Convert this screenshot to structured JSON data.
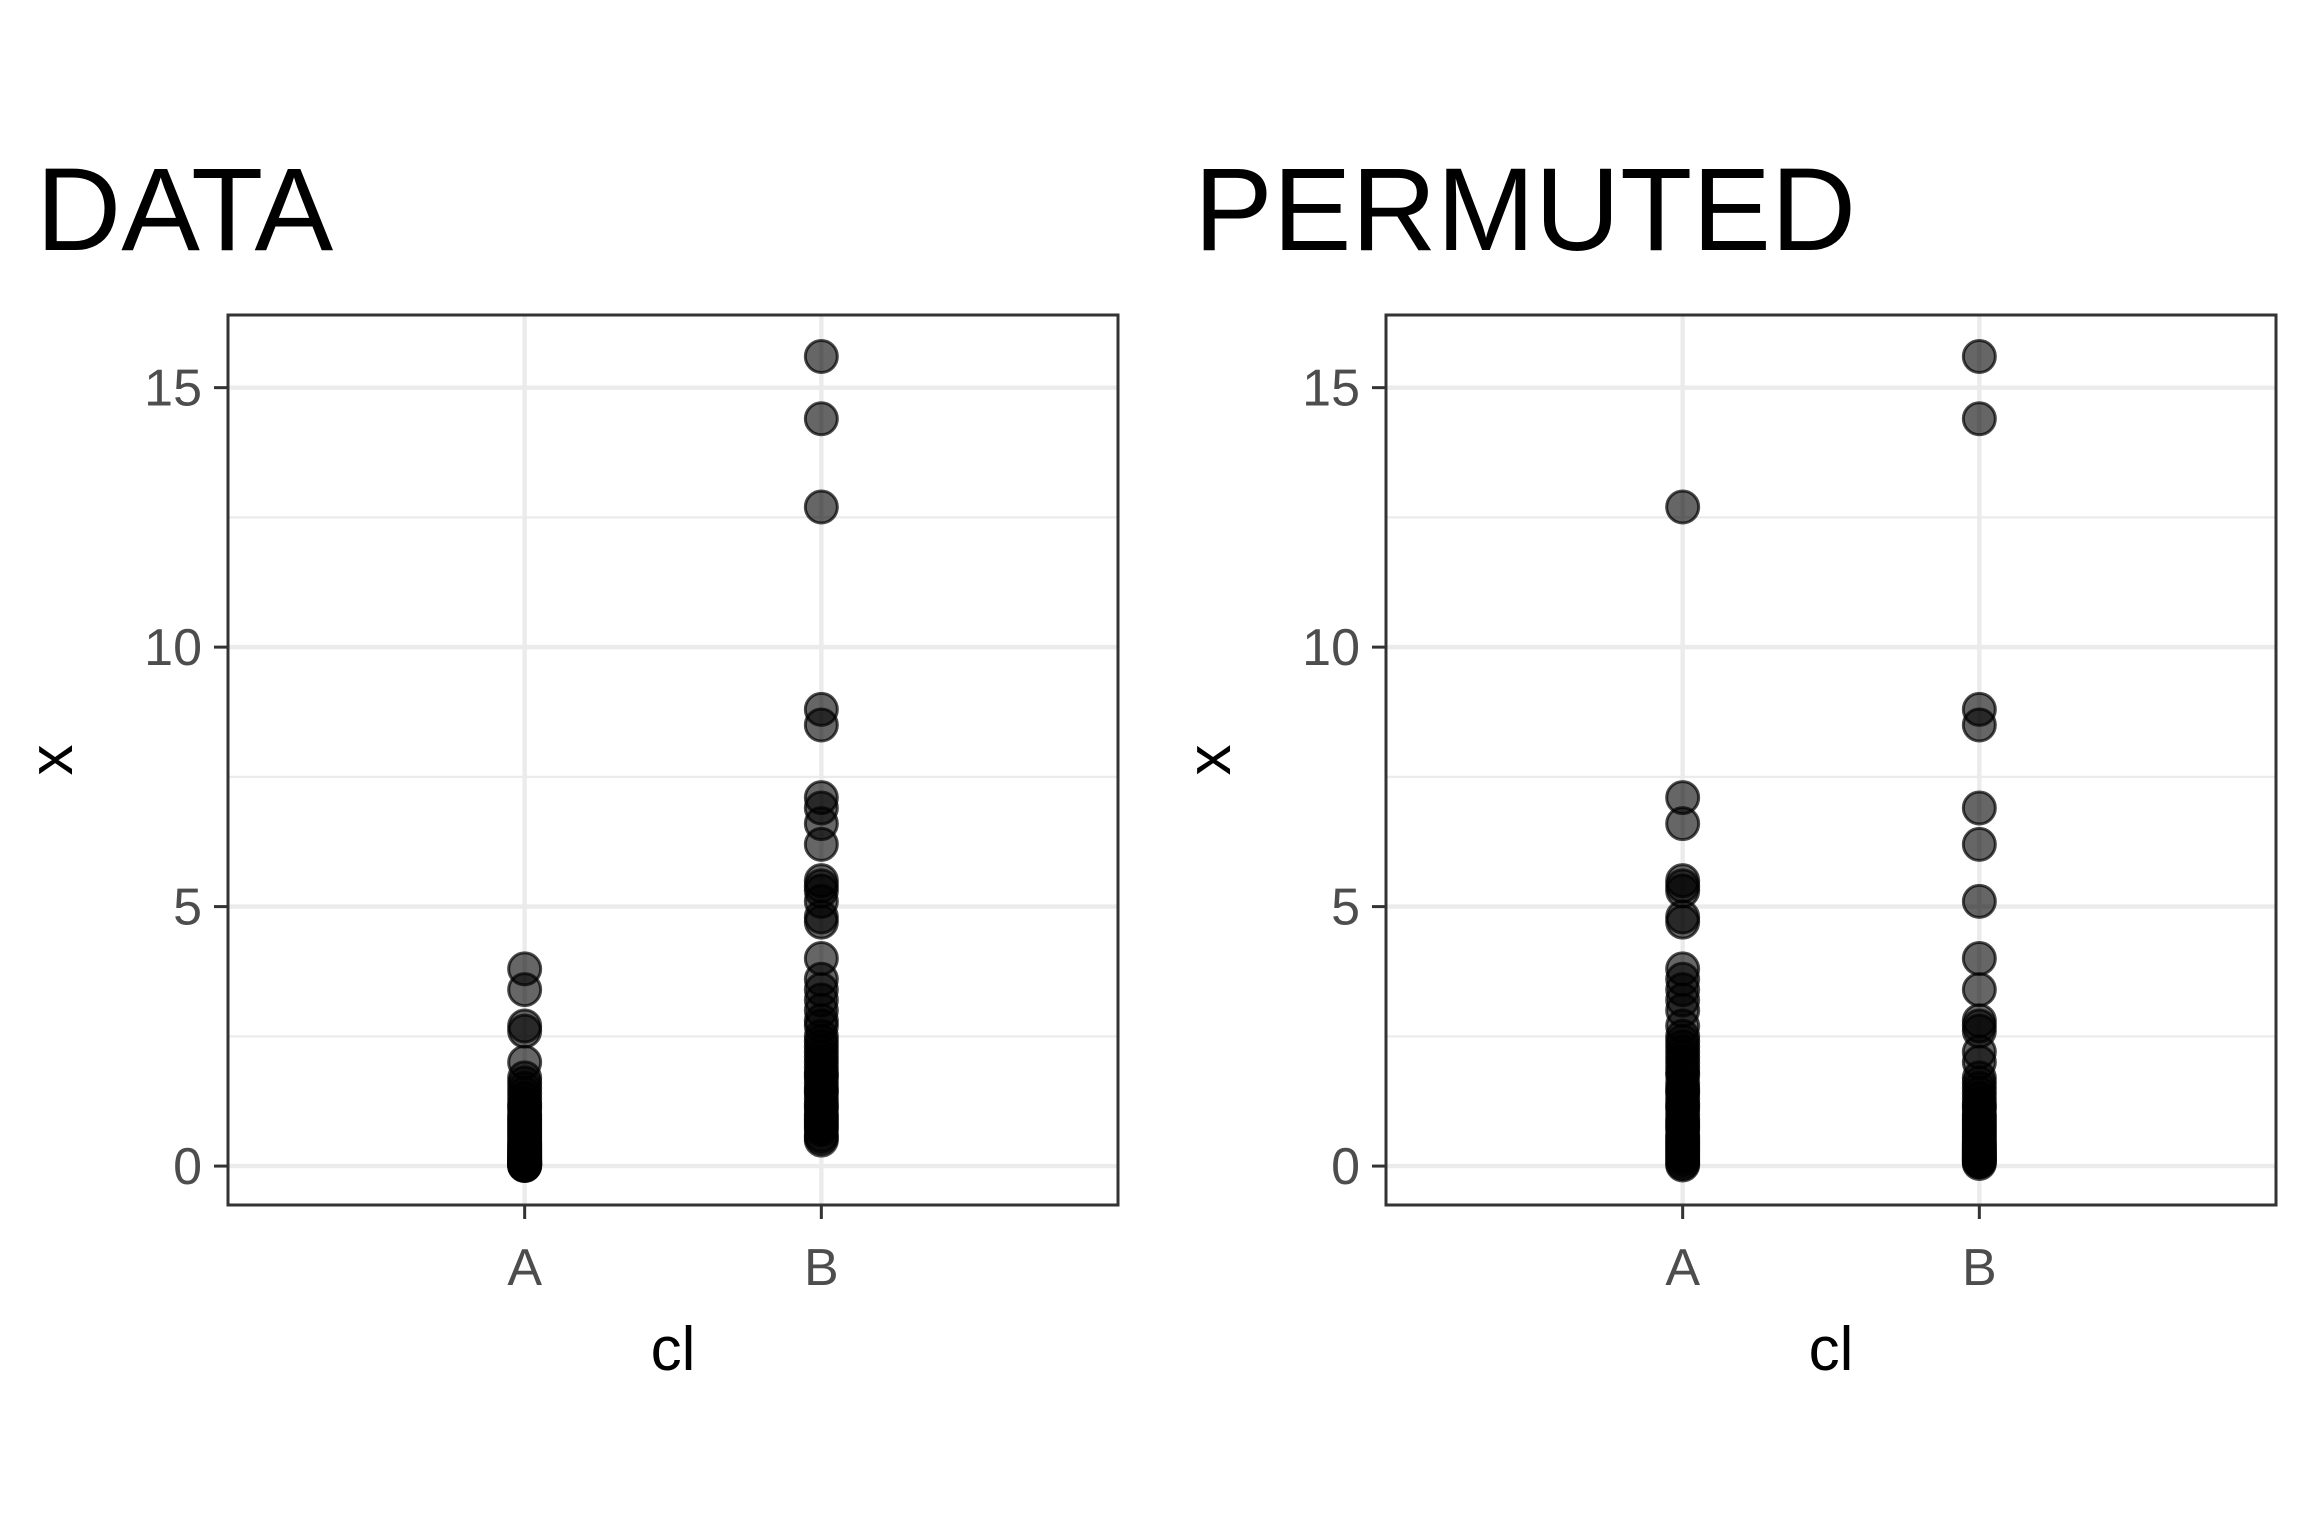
{
  "chart_data": [
    {
      "type": "scatter",
      "title": "DATA",
      "xlabel": "cl",
      "ylabel": "x",
      "categories": [
        "A",
        "B"
      ],
      "ylim": [
        -0.75,
        16.4
      ],
      "yticks": [
        0,
        5,
        10,
        15
      ],
      "grid": true,
      "legend": "none",
      "series": [
        {
          "x": [
            "A",
            "A",
            "A",
            "A",
            "A",
            "A",
            "A",
            "A",
            "A",
            "A",
            "A",
            "A",
            "A",
            "A",
            "A",
            "A",
            "A",
            "A",
            "A",
            "A",
            "A",
            "A",
            "A",
            "A",
            "A",
            "A",
            "A",
            "A",
            "A",
            "A",
            "A",
            "A",
            "A",
            "A",
            "A",
            "A",
            "A",
            "A",
            "A",
            "A",
            "A",
            "A",
            "A",
            "A",
            "A",
            "A",
            "A",
            "A",
            "A",
            "A"
          ],
          "y": [
            3.8,
            3.4,
            2.7,
            2.6,
            2.0,
            1.7,
            1.6,
            1.5,
            1.4,
            1.3,
            1.2,
            1.15,
            1.1,
            1.0,
            0.95,
            0.9,
            0.85,
            0.8,
            0.75,
            0.7,
            0.65,
            0.6,
            0.55,
            0.5,
            0.45,
            0.42,
            0.38,
            0.35,
            0.32,
            0.3,
            0.27,
            0.25,
            0.22,
            0.2,
            0.18,
            0.16,
            0.14,
            0.12,
            0.1,
            0.09,
            0.08,
            0.07,
            0.06,
            0.05,
            0.04,
            0.03,
            0.02,
            0.02,
            0.01,
            0.01
          ]
        },
        {
          "x": [
            "B",
            "B",
            "B",
            "B",
            "B",
            "B",
            "B",
            "B",
            "B",
            "B",
            "B",
            "B",
            "B",
            "B",
            "B",
            "B",
            "B",
            "B",
            "B",
            "B",
            "B",
            "B",
            "B",
            "B",
            "B",
            "B",
            "B",
            "B",
            "B",
            "B",
            "B",
            "B",
            "B",
            "B",
            "B",
            "B",
            "B",
            "B",
            "B",
            "B",
            "B",
            "B",
            "B",
            "B",
            "B",
            "B",
            "B",
            "B",
            "B",
            "B"
          ],
          "y": [
            15.6,
            14.4,
            12.7,
            8.8,
            8.5,
            7.1,
            6.9,
            6.6,
            6.2,
            5.5,
            5.4,
            5.3,
            5.1,
            4.8,
            4.7,
            4.0,
            3.6,
            3.4,
            3.2,
            3.0,
            2.8,
            2.7,
            2.5,
            2.4,
            2.3,
            2.2,
            2.1,
            2.0,
            1.9,
            1.8,
            1.75,
            1.7,
            1.6,
            1.5,
            1.45,
            1.4,
            1.3,
            1.2,
            1.15,
            1.1,
            1.0,
            0.95,
            0.9,
            0.85,
            0.8,
            0.75,
            0.7,
            0.6,
            0.55,
            0.5
          ]
        }
      ]
    },
    {
      "type": "scatter",
      "title": "PERMUTED",
      "xlabel": "cl",
      "ylabel": "x",
      "categories": [
        "A",
        "B"
      ],
      "ylim": [
        -0.75,
        16.4
      ],
      "yticks": [
        0,
        5,
        10,
        15
      ],
      "grid": true,
      "legend": "none",
      "series": [
        {
          "x": [
            "A",
            "A",
            "A",
            "A",
            "A",
            "A",
            "A",
            "A",
            "A",
            "A",
            "A",
            "A",
            "A",
            "A",
            "A",
            "A",
            "A",
            "A",
            "A",
            "A",
            "A",
            "A",
            "A",
            "A",
            "A",
            "A",
            "A",
            "A",
            "A",
            "A",
            "A",
            "A",
            "A",
            "A",
            "A",
            "A",
            "A",
            "A",
            "A",
            "A",
            "A",
            "A",
            "A",
            "A",
            "A",
            "A",
            "A",
            "A",
            "A",
            "A"
          ],
          "y": [
            12.7,
            7.1,
            6.6,
            5.5,
            5.4,
            5.3,
            4.8,
            4.7,
            3.8,
            3.6,
            3.4,
            3.2,
            3.0,
            2.7,
            2.5,
            2.4,
            2.3,
            2.2,
            2.1,
            2.0,
            1.9,
            1.8,
            1.75,
            1.6,
            1.5,
            1.45,
            1.4,
            1.3,
            1.2,
            1.15,
            1.1,
            1.0,
            0.9,
            0.85,
            0.8,
            0.75,
            0.7,
            0.6,
            0.55,
            0.5,
            0.45,
            0.4,
            0.35,
            0.3,
            0.25,
            0.2,
            0.15,
            0.1,
            0.05,
            0.02
          ]
        },
        {
          "x": [
            "B",
            "B",
            "B",
            "B",
            "B",
            "B",
            "B",
            "B",
            "B",
            "B",
            "B",
            "B",
            "B",
            "B",
            "B",
            "B",
            "B",
            "B",
            "B",
            "B",
            "B",
            "B",
            "B",
            "B",
            "B",
            "B",
            "B",
            "B",
            "B",
            "B",
            "B",
            "B",
            "B",
            "B",
            "B",
            "B",
            "B",
            "B",
            "B",
            "B",
            "B",
            "B",
            "B",
            "B",
            "B",
            "B",
            "B",
            "B",
            "B",
            "B"
          ],
          "y": [
            15.6,
            14.4,
            8.8,
            8.5,
            6.9,
            6.2,
            5.1,
            4.0,
            3.4,
            2.8,
            2.7,
            2.6,
            2.2,
            2.0,
            1.7,
            1.6,
            1.5,
            1.4,
            1.3,
            1.2,
            1.15,
            1.1,
            1.0,
            0.95,
            0.9,
            0.85,
            0.8,
            0.75,
            0.7,
            0.65,
            0.6,
            0.55,
            0.5,
            0.45,
            0.42,
            0.38,
            0.35,
            0.32,
            0.3,
            0.27,
            0.25,
            0.22,
            0.2,
            0.18,
            0.16,
            0.14,
            0.12,
            0.1,
            0.08,
            0.05
          ]
        }
      ]
    }
  ]
}
